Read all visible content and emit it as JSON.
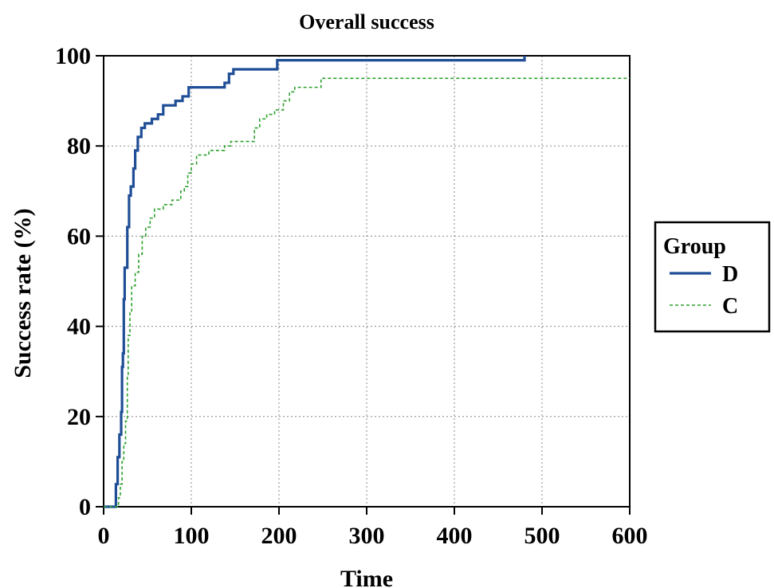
{
  "chart_data": {
    "type": "line",
    "title": "Overall success",
    "xlabel": "Time",
    "ylabel": "Success rate (%)",
    "xlim": [
      0,
      600
    ],
    "ylim": [
      0,
      100
    ],
    "x_ticks": [
      0,
      100,
      200,
      300,
      400,
      500,
      600
    ],
    "y_ticks": [
      0,
      20,
      40,
      60,
      80,
      100
    ],
    "grid": true,
    "step": true,
    "legend": {
      "title": "Group",
      "placement": "right"
    },
    "series": [
      {
        "name": "D",
        "color": "#1f4e96",
        "style": "solid",
        "points": [
          [
            0,
            0
          ],
          [
            12,
            0
          ],
          [
            14,
            5
          ],
          [
            16,
            11
          ],
          [
            18,
            16
          ],
          [
            20,
            21
          ],
          [
            21,
            31
          ],
          [
            22,
            34
          ],
          [
            23,
            46
          ],
          [
            24,
            53
          ],
          [
            27,
            62
          ],
          [
            29,
            69
          ],
          [
            31,
            71
          ],
          [
            34,
            75
          ],
          [
            36,
            79
          ],
          [
            39,
            82
          ],
          [
            43,
            84
          ],
          [
            47,
            85
          ],
          [
            55,
            86
          ],
          [
            62,
            87
          ],
          [
            68,
            89
          ],
          [
            82,
            90
          ],
          [
            90,
            91
          ],
          [
            97,
            93
          ],
          [
            138,
            94
          ],
          [
            143,
            96
          ],
          [
            148,
            97
          ],
          [
            198,
            99
          ],
          [
            480,
            100
          ]
        ]
      },
      {
        "name": "C",
        "color": "#2ca02c",
        "style": "dashed",
        "points": [
          [
            0,
            0
          ],
          [
            15,
            0
          ],
          [
            17,
            2
          ],
          [
            19,
            5
          ],
          [
            21,
            10
          ],
          [
            23,
            14
          ],
          [
            25,
            19
          ],
          [
            27,
            29
          ],
          [
            28,
            38
          ],
          [
            30,
            43
          ],
          [
            32,
            49
          ],
          [
            36,
            52
          ],
          [
            40,
            56
          ],
          [
            44,
            60
          ],
          [
            48,
            62
          ],
          [
            53,
            64
          ],
          [
            58,
            66
          ],
          [
            68,
            67
          ],
          [
            78,
            68
          ],
          [
            88,
            70
          ],
          [
            92,
            71
          ],
          [
            96,
            74
          ],
          [
            100,
            76
          ],
          [
            106,
            78
          ],
          [
            120,
            79
          ],
          [
            138,
            80
          ],
          [
            145,
            81
          ],
          [
            172,
            84
          ],
          [
            178,
            86
          ],
          [
            186,
            87
          ],
          [
            195,
            88
          ],
          [
            205,
            90
          ],
          [
            212,
            92
          ],
          [
            218,
            93
          ],
          [
            248,
            95
          ],
          [
            600,
            95
          ]
        ]
      }
    ]
  },
  "legend_title": "Group"
}
